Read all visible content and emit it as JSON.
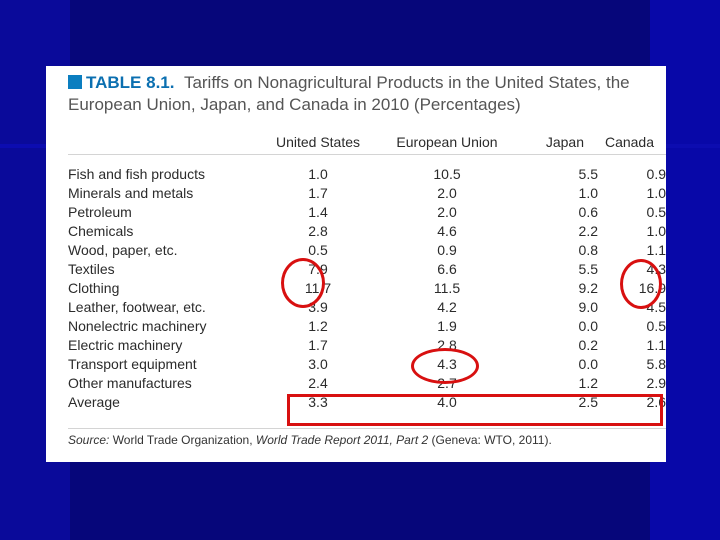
{
  "table": {
    "label": "TABLE 8.1.",
    "title_line1": "Tariffs on Nonagricultural Products in the United States, the",
    "title_line2": "European Union, Japan, and Canada in 2010 (Percentages)",
    "columns": [
      "United States",
      "European Union",
      "Japan",
      "Canada"
    ],
    "rows": [
      {
        "label": "Fish and fish products",
        "us": "1.0",
        "eu": "10.5",
        "jp": "5.5",
        "ca": "0.9"
      },
      {
        "label": "Minerals and metals",
        "us": "1.7",
        "eu": "2.0",
        "jp": "1.0",
        "ca": "1.0"
      },
      {
        "label": "Petroleum",
        "us": "1.4",
        "eu": "2.0",
        "jp": "0.6",
        "ca": "0.5"
      },
      {
        "label": "Chemicals",
        "us": "2.8",
        "eu": "4.6",
        "jp": "2.2",
        "ca": "1.0"
      },
      {
        "label": "Wood, paper, etc.",
        "us": "0.5",
        "eu": "0.9",
        "jp": "0.8",
        "ca": "1.1"
      },
      {
        "label": "Textiles",
        "us": "7.9",
        "eu": "6.6",
        "jp": "5.5",
        "ca": "4.3"
      },
      {
        "label": "Clothing",
        "us": "11.7",
        "eu": "11.5",
        "jp": "9.2",
        "ca": "16.9"
      },
      {
        "label": "Leather, footwear, etc.",
        "us": "3.9",
        "eu": "4.2",
        "jp": "9.0",
        "ca": "4.5"
      },
      {
        "label": "Nonelectric machinery",
        "us": "1.2",
        "eu": "1.9",
        "jp": "0.0",
        "ca": "0.5"
      },
      {
        "label": "Electric machinery",
        "us": "1.7",
        "eu": "2.8",
        "jp": "0.2",
        "ca": "1.1"
      },
      {
        "label": "Transport equipment",
        "us": "3.0",
        "eu": "4.3",
        "jp": "0.0",
        "ca": "5.8"
      },
      {
        "label": "Other manufactures",
        "us": "2.4",
        "eu": "2.7",
        "jp": "1.2",
        "ca": "2.9"
      },
      {
        "label": "Average",
        "us": "3.3",
        "eu": "4.0",
        "jp": "2.5",
        "ca": "2.6"
      }
    ],
    "source_label": "Source:",
    "source_pre": " World Trade Organization, ",
    "source_title": "World Trade Report 2011, Part 2",
    "source_post": " (Geneva: WTO, 2011)."
  },
  "annotations": {
    "color": "#d81010"
  },
  "theme": {
    "background": "#06067a",
    "accent": "#0b6fb0"
  }
}
